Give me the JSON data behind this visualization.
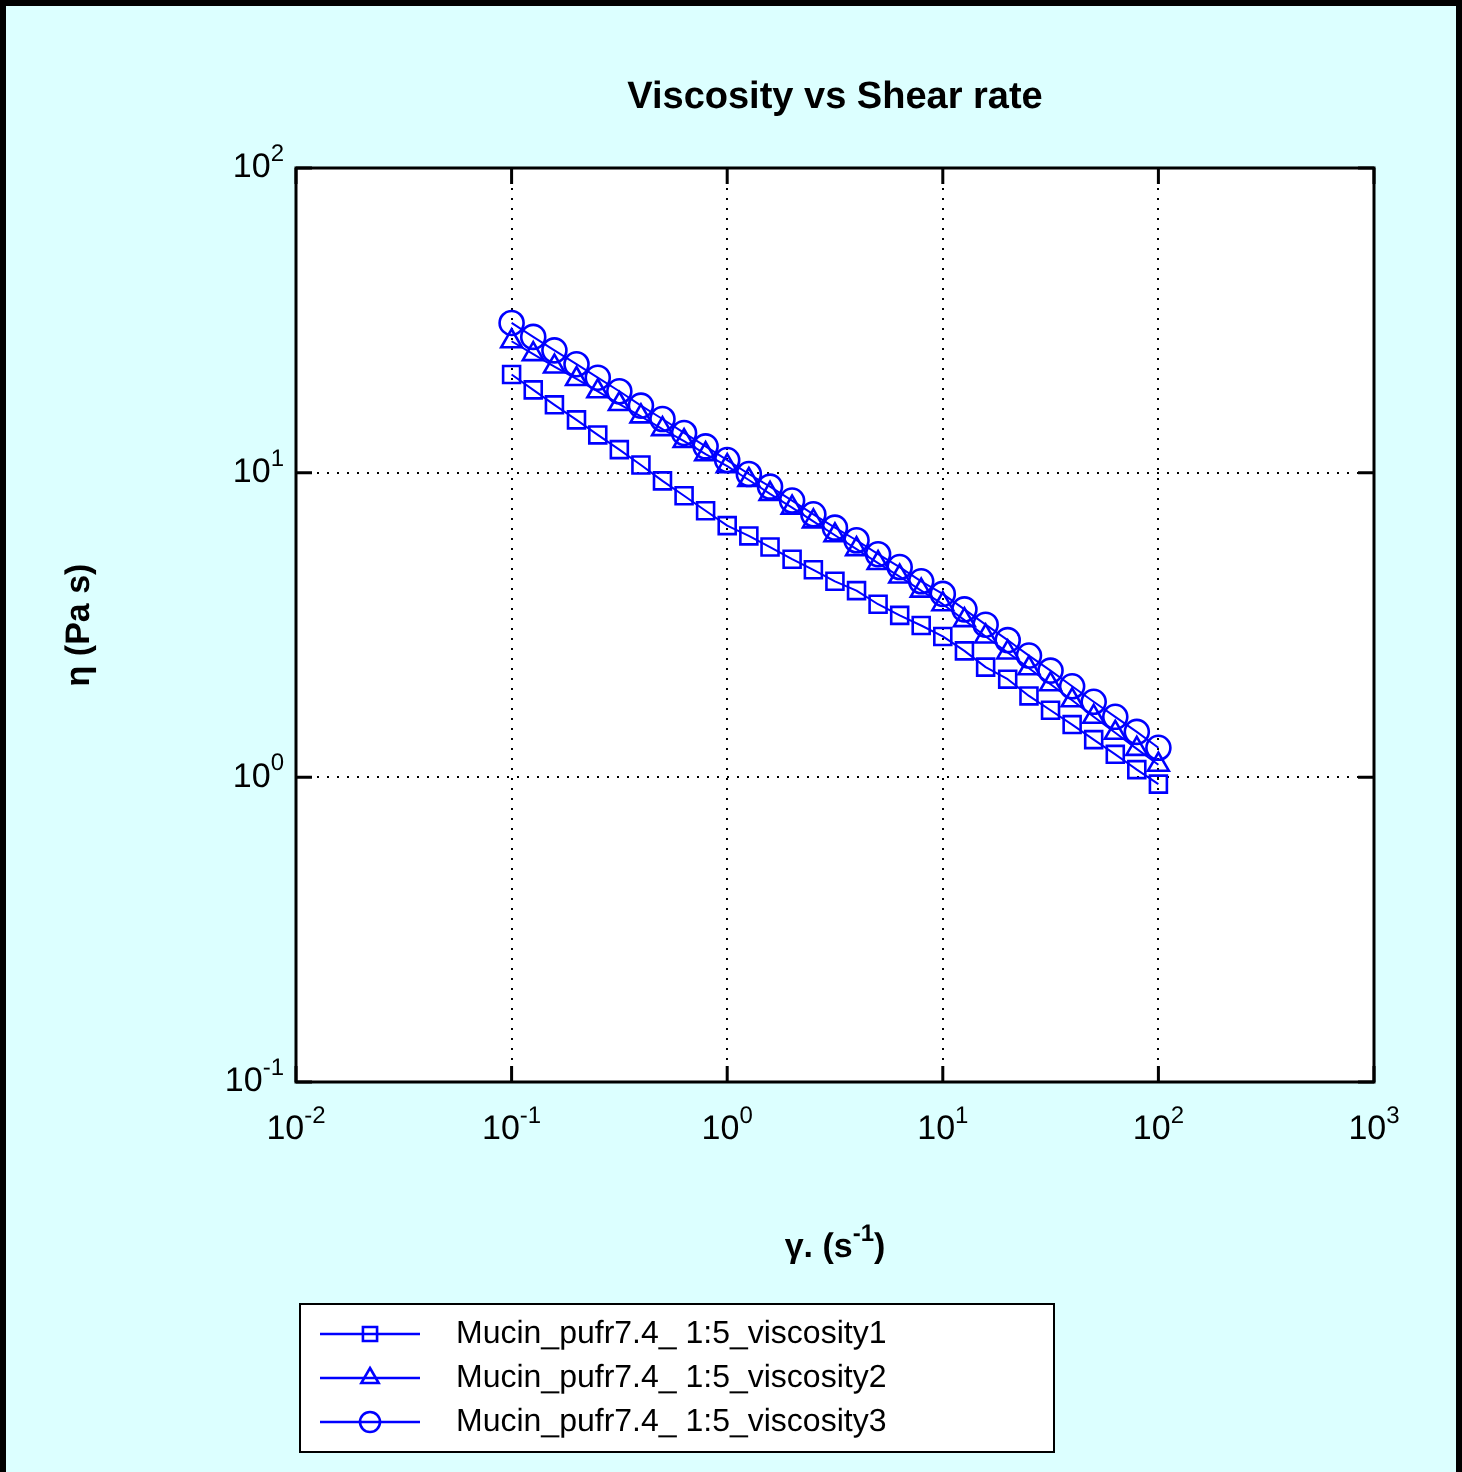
{
  "chart_data": {
    "type": "line",
    "title": "Viscosity vs Shear rate",
    "xlabel": "γ. (s$^{-1}$)",
    "ylabel": "η (Pa s)",
    "log": "xy",
    "grid": true,
    "legend": "bottom",
    "line_style": "solid",
    "xlim": [
      0.01,
      1000
    ],
    "ylim": [
      0.1,
      100
    ],
    "xticks": [
      {
        "value": 0.01,
        "label": "10$^{-2}$"
      },
      {
        "value": 0.1,
        "label": "10$^{-1}$"
      },
      {
        "value": 1,
        "label": "10$^{0}$"
      },
      {
        "value": 10,
        "label": "10$^{1}$"
      },
      {
        "value": 100,
        "label": "10$^{2}$"
      },
      {
        "value": 1000,
        "label": "10$^{3}$"
      }
    ],
    "yticks": [
      {
        "value": 0.1,
        "label": "10$^{-1}$"
      },
      {
        "value": 1,
        "label": "10$^{0}$"
      },
      {
        "value": 10,
        "label": "10$^{1}$"
      },
      {
        "value": 100,
        "label": "10$^{2}$"
      }
    ],
    "x": [
      0.1,
      0.126,
      0.158,
      0.2,
      0.251,
      0.316,
      0.398,
      0.501,
      0.631,
      0.794,
      1,
      1.26,
      1.58,
      2,
      2.51,
      3.16,
      3.98,
      5.01,
      6.31,
      7.94,
      10,
      12.6,
      15.8,
      20,
      25.1,
      31.6,
      39.8,
      50.1,
      63.1,
      79.4,
      100
    ],
    "series": [
      {
        "name": "Mucin_pufr7.4_ 1:5_viscosity1",
        "color": "#0000ff",
        "marker": "square",
        "values": [
          21.0,
          18.7,
          16.7,
          14.9,
          13.3,
          11.9,
          10.6,
          9.4,
          8.4,
          7.5,
          6.7,
          6.2,
          5.7,
          5.2,
          4.8,
          4.4,
          4.1,
          3.7,
          3.4,
          3.15,
          2.9,
          2.6,
          2.3,
          2.1,
          1.85,
          1.66,
          1.49,
          1.33,
          1.19,
          1.06,
          0.95
        ]
      },
      {
        "name": "Mucin_pufr7.4_ 1:5_viscosity2",
        "color": "#0000ff",
        "marker": "triangle",
        "values": [
          27.0,
          24.5,
          22.3,
          20.3,
          18.5,
          16.8,
          15.3,
          13.9,
          12.7,
          11.5,
          10.5,
          9.46,
          8.52,
          7.68,
          6.92,
          6.23,
          5.61,
          5.05,
          4.56,
          4.1,
          3.7,
          3.28,
          2.9,
          2.57,
          2.28,
          2.02,
          1.79,
          1.58,
          1.4,
          1.24,
          1.1
        ]
      },
      {
        "name": "Mucin_pufr7.4_ 1:5_viscosity3",
        "color": "#0000ff",
        "marker": "circle",
        "values": [
          31.0,
          27.9,
          25.2,
          22.7,
          20.5,
          18.5,
          16.6,
          15.0,
          13.5,
          12.2,
          11.0,
          9.9,
          9.0,
          8.1,
          7.3,
          6.6,
          6.0,
          5.4,
          4.9,
          4.4,
          4.0,
          3.56,
          3.17,
          2.82,
          2.51,
          2.24,
          1.99,
          1.77,
          1.58,
          1.41,
          1.25
        ]
      }
    ]
  }
}
